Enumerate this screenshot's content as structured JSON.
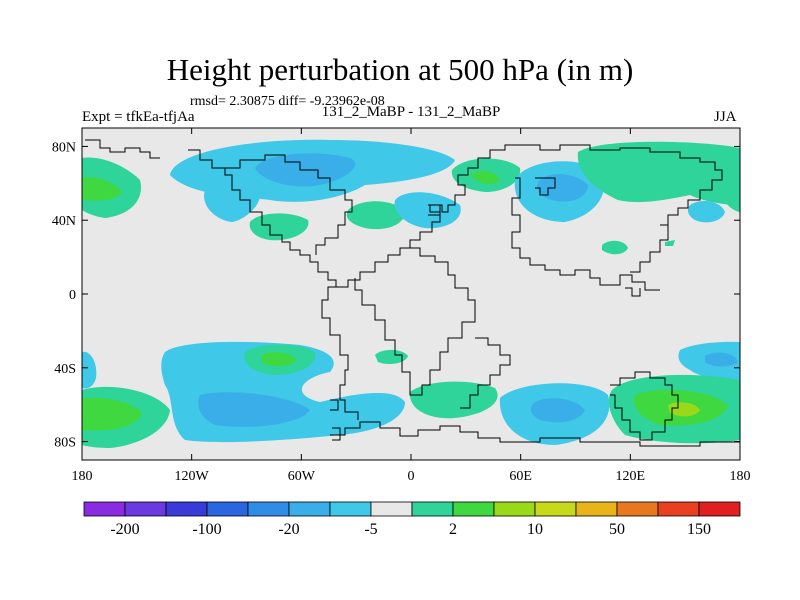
{
  "title": "Height perturbation at 500 hPa (in m)",
  "stats_line": "rmsd= 2.30875 diff= -9.23962e-08",
  "left_label": "Expt = tfkEa-tfjAa",
  "center_label": "131_2_MaBP - 131_2_MaBP",
  "right_label": "JJA",
  "map": {
    "projection": "cylindrical-equidistant",
    "lon_range": [
      -180,
      180
    ],
    "lat_range": [
      -90,
      90
    ],
    "x_ticks": [
      {
        "value": -180,
        "label": "180"
      },
      {
        "value": -120,
        "label": "120W"
      },
      {
        "value": -60,
        "label": "60W"
      },
      {
        "value": 0,
        "label": "0"
      },
      {
        "value": 60,
        "label": "60E"
      },
      {
        "value": 120,
        "label": "120E"
      },
      {
        "value": 180,
        "label": "180"
      }
    ],
    "y_ticks": [
      {
        "value": 80,
        "label": "80N"
      },
      {
        "value": 40,
        "label": "40N"
      },
      {
        "value": 0,
        "label": "0"
      },
      {
        "value": -40,
        "label": "40S"
      },
      {
        "value": -80,
        "label": "80S"
      }
    ],
    "background_color": "#e8e8e8",
    "coastline_color": "#000000"
  },
  "colorbar": {
    "colors": [
      "#8a2be2",
      "#6a3ae0",
      "#3a3ad8",
      "#2a66e0",
      "#2f8de8",
      "#3aaee8",
      "#40c8e8",
      "#e8e8e8",
      "#2ed49a",
      "#40d840",
      "#9ad81a",
      "#c8d81a",
      "#e8b41a",
      "#e87820",
      "#e84020",
      "#e02020"
    ],
    "labels": [
      "-200",
      "-100",
      "-20",
      "-5",
      "2",
      "10",
      "50",
      "150"
    ]
  }
}
